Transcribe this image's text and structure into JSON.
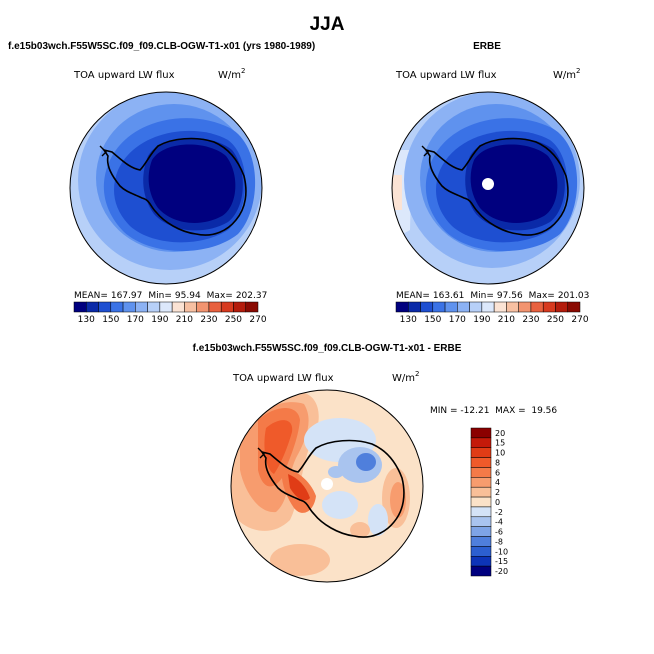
{
  "figure": {
    "title": "JJA"
  },
  "chart_data": [
    {
      "type": "heatmap",
      "panel": "model",
      "title": "f.e15b03wch.F55W5SC.f09_f09.CLB-OGW-T1-x01 (yrs 1980-1989)",
      "field": "TOA upward LW flux",
      "units": "W/m",
      "units_exp": "2",
      "stats": {
        "mean": "167.97",
        "min": "95.94",
        "max": "202.37"
      },
      "stats_labels": {
        "mean": "MEAN=",
        "min": "Min=",
        "max": "Max="
      },
      "colorbar_ticks": [
        "130",
        "150",
        "170",
        "190",
        "210",
        "230",
        "250",
        "270"
      ],
      "levels": [
        130,
        140,
        150,
        160,
        170,
        180,
        190,
        200,
        210,
        220,
        230,
        240,
        250,
        260,
        270
      ],
      "colors": [
        "#00007f",
        "#0a2aa8",
        "#1e4fd1",
        "#3a72e6",
        "#5f92ee",
        "#8cb2f4",
        "#b7d0f8",
        "#dce8fb",
        "#fbe3d4",
        "#f7c0a2",
        "#f29470",
        "#e8613f",
        "#d73a1f",
        "#b41c0c",
        "#8a0a02"
      ]
    },
    {
      "type": "heatmap",
      "panel": "obs",
      "title": "ERBE",
      "field": "TOA upward LW flux",
      "units": "W/m",
      "units_exp": "2",
      "stats": {
        "mean": "163.61",
        "min": "97.56",
        "max": "201.03"
      },
      "stats_labels": {
        "mean": "MEAN=",
        "min": "Min=",
        "max": "Max="
      },
      "colorbar_ticks": [
        "130",
        "150",
        "170",
        "190",
        "210",
        "230",
        "250",
        "270"
      ]
    },
    {
      "type": "heatmap",
      "panel": "difference",
      "title": "f.e15b03wch.F55W5SC.f09_f09.CLB-OGW-T1-x01 - ERBE",
      "field": "TOA upward LW flux",
      "units": "W/m",
      "units_exp": "2",
      "min_max_text": "MIN = -12.21  MAX =  19.56",
      "colorbar_ticks": [
        "20",
        "15",
        "10",
        "8",
        "6",
        "4",
        "2",
        "0",
        "-2",
        "-4",
        "-6",
        "-8",
        "-10",
        "-15",
        "-20"
      ],
      "colors": [
        "#8b0000",
        "#c41a0a",
        "#e03c16",
        "#ef5a2a",
        "#f47a48",
        "#f79c6e",
        "#f9bf98",
        "#fbe2c8",
        "#d4e3f7",
        "#a9c4ef",
        "#7ea4e6",
        "#4f7fdc",
        "#2c5fd0",
        "#0d34b8",
        "#00007f"
      ]
    }
  ]
}
